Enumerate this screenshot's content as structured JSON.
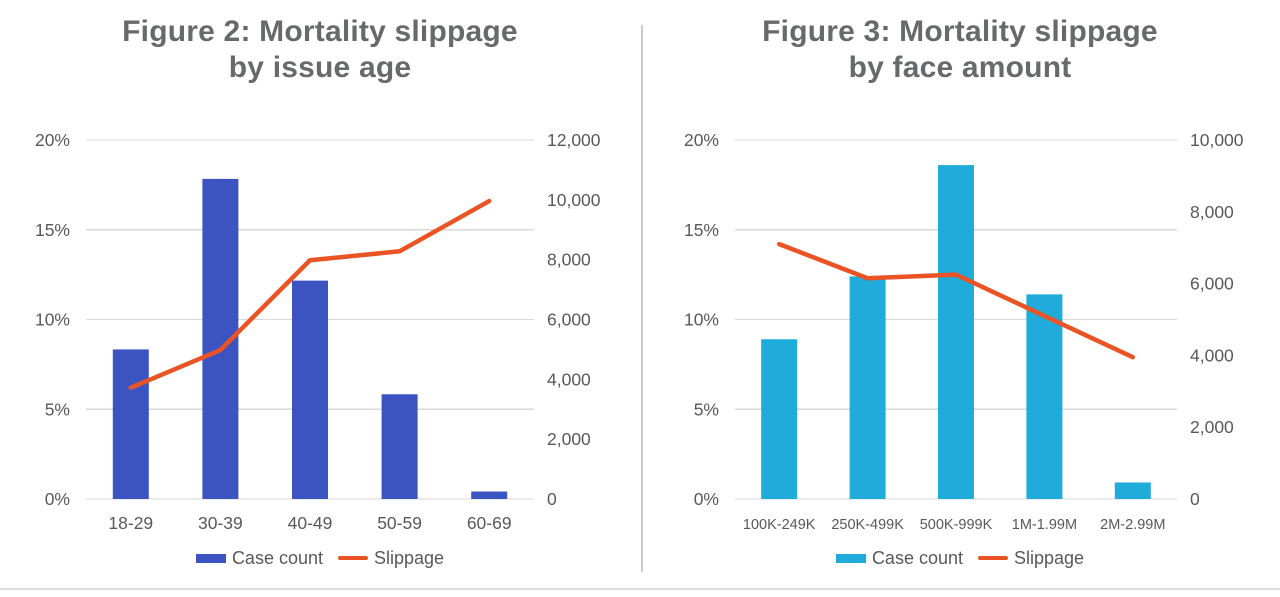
{
  "page": {
    "background_color": "#ffffff",
    "divider_color": "#c9c9c9",
    "bottom_rule_color": "#d9dde1",
    "title_color": "#68696c",
    "axis_text_color": "#595959",
    "gridline_color": "#d9d9d9"
  },
  "chart_data": [
    {
      "type": "bar",
      "subtype": "combo-bar-line-dual-axis",
      "title": "Figure 2: Mortality slippage by issue age",
      "title_lines": [
        "Figure 2: Mortality slippage",
        "by issue age"
      ],
      "xlabel": "",
      "ylabel": "",
      "categories": [
        "18-29",
        "30-39",
        "40-49",
        "50-59",
        "60-69"
      ],
      "series": [
        {
          "name": "Case count",
          "type": "bar",
          "axis": "right",
          "color": "#3b54c1",
          "values": [
            5000,
            10700,
            7300,
            3500,
            250
          ]
        },
        {
          "name": "Slippage",
          "type": "line",
          "axis": "left",
          "color": "#ea5425",
          "values": [
            6.2,
            8.3,
            13.3,
            13.8,
            16.6
          ],
          "unit": "%"
        }
      ],
      "left_axis": {
        "min": 0,
        "max": 20,
        "labels": [
          "0%",
          "5%",
          "10%",
          "15%",
          "20%"
        ]
      },
      "right_axis": {
        "min": 0,
        "max": 12000,
        "labels": [
          "0",
          "2,000",
          "4,000",
          "6,000",
          "8,000",
          "10,000",
          "12,000"
        ]
      },
      "grid": "horizontal",
      "legend_position": "bottom"
    },
    {
      "type": "bar",
      "subtype": "combo-bar-line-dual-axis",
      "title": "Figure 3: Mortality slippage by face amount",
      "title_lines": [
        "Figure 3: Mortality slippage",
        "by face amount"
      ],
      "xlabel": "",
      "ylabel": "",
      "categories": [
        "100K-249K",
        "250K-499K",
        "500K-999K",
        "1M-1.99M",
        "2M-2.99M"
      ],
      "series": [
        {
          "name": "Case count",
          "type": "bar",
          "axis": "right",
          "color": "#20acdb",
          "values": [
            4450,
            6200,
            9300,
            5700,
            460
          ]
        },
        {
          "name": "Slippage",
          "type": "line",
          "axis": "left",
          "color": "#ea5425",
          "values": [
            14.2,
            12.3,
            12.5,
            10.2,
            7.9
          ],
          "unit": "%"
        }
      ],
      "left_axis": {
        "min": 0,
        "max": 20,
        "labels": [
          "0%",
          "5%",
          "10%",
          "15%",
          "20%"
        ]
      },
      "right_axis": {
        "min": 0,
        "max": 10000,
        "labels": [
          "0",
          "2,000",
          "4,000",
          "6,000",
          "8,000",
          "10,000"
        ]
      },
      "grid": "horizontal",
      "legend_position": "bottom"
    }
  ]
}
